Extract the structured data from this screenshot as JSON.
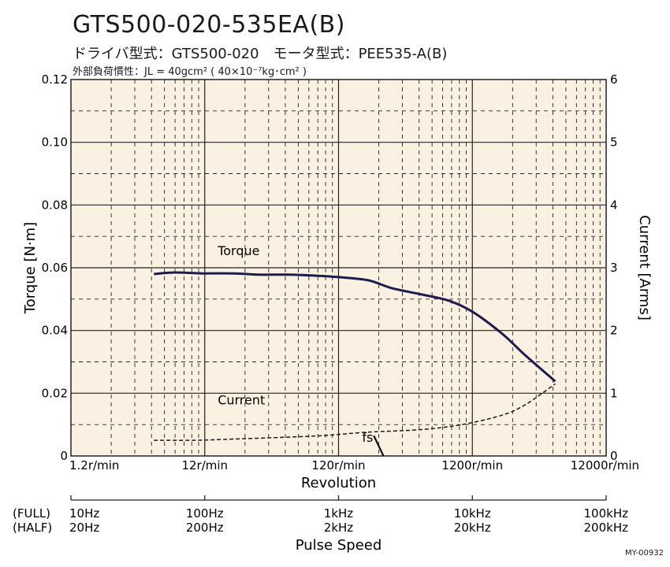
{
  "header": {
    "title": "GTS500-020-535EA(B)",
    "subtitle": "ドライバ型式：GTS500-020　モータ型式：PEE535-A(B)",
    "inertia_note": "外部負荷慣性：JL = 40gcm² ( 40×10⁻⁷kg･cm² )"
  },
  "chart_data": {
    "type": "line",
    "xscale": "log",
    "xlabel": "Revolution",
    "x_tick_labels": [
      "1.2r/min",
      "12r/min",
      "120r/min",
      "1200r/min",
      "12000r/min"
    ],
    "x_ticks": [
      1.2,
      12,
      120,
      1200,
      12000
    ],
    "xlim": [
      1.2,
      12000
    ],
    "ylabel": "Torque [N·m]",
    "ylim": [
      0,
      0.12
    ],
    "y_ticks": [
      0,
      0.02,
      0.04,
      0.06,
      0.08,
      0.1,
      0.12
    ],
    "y_tick_labels": [
      "0",
      "0.02",
      "0.04",
      "0.06",
      "0.08",
      "0.10",
      "0.12"
    ],
    "y2label": "Current [Arms]",
    "y2lim": [
      0,
      6
    ],
    "y2_ticks": [
      0,
      1,
      2,
      3,
      4,
      5,
      6
    ],
    "grid": true,
    "series": [
      {
        "name": "Torque",
        "axis": "left",
        "style": "solid",
        "color": "#1c1c50",
        "x": [
          5,
          7,
          10,
          12,
          20,
          30,
          50,
          80,
          120,
          200,
          300,
          500,
          800,
          1200,
          2000,
          3000,
          5000
        ],
        "y": [
          0.058,
          0.0585,
          0.0583,
          0.0582,
          0.0582,
          0.0578,
          0.0578,
          0.0575,
          0.057,
          0.056,
          0.0535,
          0.0515,
          0.0495,
          0.046,
          0.039,
          0.032,
          0.0238
        ]
      },
      {
        "name": "Current",
        "axis": "right",
        "style": "dashed",
        "color": "#1a1a1a",
        "x": [
          5,
          10,
          20,
          50,
          100,
          200,
          500,
          1000,
          2000,
          3000,
          5000
        ],
        "y": [
          0.25,
          0.25,
          0.27,
          0.3,
          0.33,
          0.38,
          0.42,
          0.5,
          0.65,
          0.82,
          1.15
        ]
      }
    ],
    "annotations": [
      {
        "text": "Torque",
        "x": 15,
        "y": 0.064
      },
      {
        "text": "Current",
        "x": 15,
        "y": 0.0165
      },
      {
        "text": "fs",
        "x": 180,
        "y": 0.0045
      }
    ],
    "fs_line": {
      "x1": 220,
      "y1": 0.0065,
      "x2": 260,
      "y2": 0
    }
  },
  "pulse_speed": {
    "xlabel": "Pulse Speed",
    "row_labels": [
      "(FULL)",
      "(HALF)"
    ],
    "full": [
      "10Hz",
      "100Hz",
      "1kHz",
      "10kHz",
      "100kHz"
    ],
    "half": [
      "20Hz",
      "200Hz",
      "2kHz",
      "20kHz",
      "200kHz"
    ]
  },
  "code": "MY-00932"
}
